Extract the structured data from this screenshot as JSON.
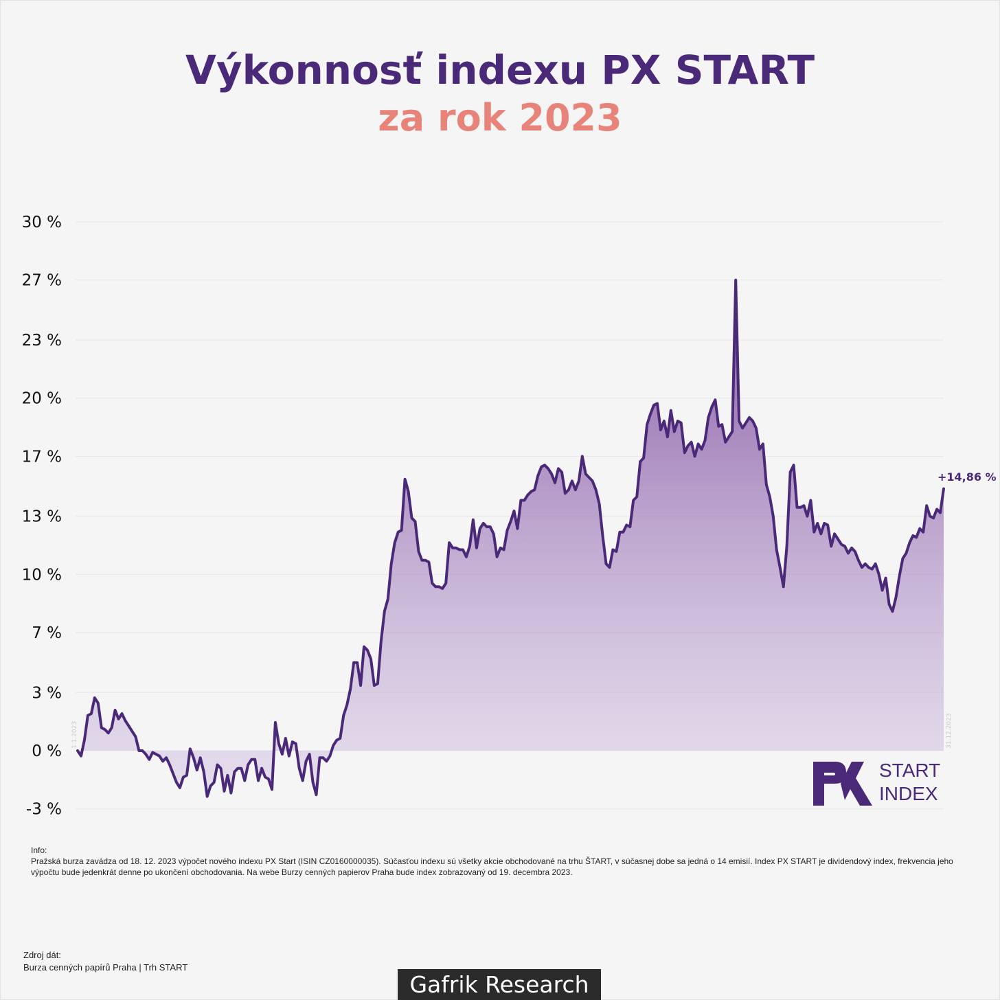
{
  "header": {
    "title": "Výkonnosť indexu PX START",
    "subtitle": "za rok 2023"
  },
  "chart_data": {
    "type": "area",
    "ylim": [
      -3,
      30
    ],
    "yticks": [
      {
        "value": 30,
        "label": "30 %"
      },
      {
        "value": 26.7,
        "label": "27 %"
      },
      {
        "value": 23.3,
        "label": "23 %"
      },
      {
        "value": 20,
        "label": "20 %"
      },
      {
        "value": 16.7,
        "label": "17 %"
      },
      {
        "value": 13.3,
        "label": "13 %"
      },
      {
        "value": 10,
        "label": "10 %"
      },
      {
        "value": 6.7,
        "label": "7 %"
      },
      {
        "value": 3.3,
        "label": "3 %"
      },
      {
        "value": 0,
        "label": "0 %"
      },
      {
        "value": -3.3,
        "label": "-3 %"
      }
    ],
    "start_date": "1.1.2023",
    "end_date": "31.12.2023",
    "end_value_label": "+14,86 %",
    "line_color": "#4a2a78",
    "fill_color": "#8a5aa8",
    "values": [
      0.0,
      -0.3,
      0.6,
      2.0,
      2.1,
      3.0,
      2.7,
      1.3,
      1.2,
      1.0,
      1.3,
      2.3,
      1.8,
      2.1,
      1.7,
      1.4,
      1.1,
      0.8,
      0.0,
      0.0,
      -0.2,
      -0.5,
      -0.1,
      -0.2,
      -0.3,
      -0.6,
      -0.4,
      -0.8,
      -1.3,
      -1.8,
      -2.1,
      -1.5,
      -1.4,
      0.1,
      -0.4,
      -1.1,
      -0.4,
      -1.2,
      -2.6,
      -2.0,
      -1.8,
      -0.8,
      -1.0,
      -2.3,
      -1.4,
      -2.4,
      -1.2,
      -1.0,
      -1.0,
      -1.7,
      -0.8,
      -0.5,
      -0.5,
      -1.7,
      -1.0,
      -1.5,
      -1.6,
      -2.2,
      1.6,
      0.4,
      -0.2,
      0.7,
      -0.3,
      0.5,
      0.4,
      -1.0,
      -1.7,
      -0.6,
      -0.2,
      -1.8,
      -2.5,
      -0.4,
      -0.4,
      -0.6,
      -0.3,
      0.3,
      0.6,
      0.7,
      2.0,
      2.6,
      3.5,
      5.0,
      5.0,
      3.7,
      5.9,
      5.7,
      5.2,
      3.7,
      3.8,
      6.2,
      7.9,
      8.6,
      10.6,
      11.8,
      12.4,
      12.5,
      15.4,
      14.7,
      13.2,
      13.0,
      11.3,
      10.8,
      10.8,
      10.7,
      9.5,
      9.3,
      9.3,
      9.2,
      9.5,
      11.8,
      11.5,
      11.5,
      11.4,
      11.4,
      11.0,
      11.6,
      13.1,
      11.5,
      12.6,
      12.9,
      12.7,
      12.7,
      12.3,
      11.0,
      11.5,
      11.4,
      12.5,
      13.0,
      13.6,
      12.6,
      14.2,
      14.2,
      14.5,
      14.7,
      14.8,
      15.6,
      16.1,
      16.2,
      16.0,
      15.7,
      15.2,
      16.0,
      15.8,
      14.6,
      14.8,
      15.3,
      14.8,
      15.3,
      16.7,
      15.7,
      15.5,
      15.3,
      14.8,
      14.0,
      12.2,
      10.6,
      10.4,
      11.4,
      11.3,
      12.4,
      12.4,
      12.8,
      12.7,
      14.2,
      14.4,
      16.4,
      16.6,
      18.5,
      19.1,
      19.6,
      19.7,
      18.2,
      18.7,
      17.8,
      19.3,
      18.1,
      18.7,
      18.6,
      16.9,
      17.3,
      17.5,
      16.7,
      17.4,
      17.1,
      17.6,
      18.9,
      19.5,
      19.9,
      18.4,
      18.5,
      17.5,
      17.8,
      18.1,
      26.7,
      18.7,
      18.3,
      18.6,
      18.9,
      18.7,
      18.3,
      17.1,
      17.4,
      15.1,
      14.4,
      13.3,
      11.4,
      10.4,
      9.3,
      11.6,
      15.8,
      16.2,
      13.8,
      13.8,
      13.9,
      13.3,
      14.2,
      12.4,
      12.9,
      12.3,
      12.9,
      12.8,
      11.6,
      12.3,
      12.0,
      11.7,
      11.6,
      11.2,
      11.5,
      11.3,
      10.8,
      10.4,
      10.6,
      10.4,
      10.3,
      10.6,
      10.0,
      9.1,
      9.8,
      8.3,
      7.9,
      8.7,
      9.9,
      10.9,
      11.2,
      11.8,
      12.2,
      12.1,
      12.6,
      12.4,
      13.9,
      13.3,
      13.2,
      13.7,
      13.5,
      14.86
    ]
  },
  "logo": {
    "line1": "START",
    "line2": "INDEX"
  },
  "info": {
    "heading": "Info:",
    "text": "Pražská burza zavádza od 18. 12. 2023 výpočet nového indexu PX Start (ISIN CZ0160000035). Súčasťou indexu sú všetky akcie obchodované na trhu ŠTART, v súčasnej dobe sa jedná o 14 emisií. Index PX START je dividendový index, frekvencia jeho výpočtu bude jedenkrát denne po ukončení obchodovania. Na webe Burzy cenných papierov Praha bude index zobrazovaný od 19. decembra 2023."
  },
  "source": {
    "heading": "Zdroj dát:",
    "text": "Burza cenných papírů Praha | Trh START"
  },
  "brand": "Gafrik Research"
}
